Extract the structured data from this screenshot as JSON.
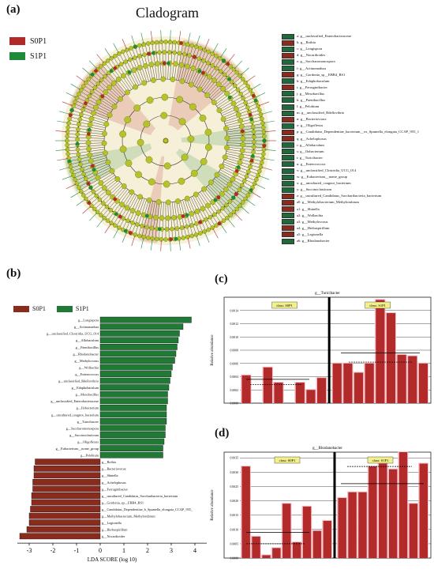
{
  "panel_a": {
    "label": "(a)",
    "title": "Cladogram",
    "legend": [
      {
        "name": "S0P1",
        "color": "#b02a2a"
      },
      {
        "name": "S1P1",
        "color": "#1f8a3a"
      }
    ],
    "taxa": [
      {
        "label": "a: g__unclassified_Enterobacteraceae",
        "group": "S1P1"
      },
      {
        "label": "b: g__Rothia",
        "group": "S0P1"
      },
      {
        "label": "c: g__Longispora",
        "group": "S1P1"
      },
      {
        "label": "d: g__Nocardioides",
        "group": "S0P1"
      },
      {
        "label": "e: g__Saccharomonospora",
        "group": "S1P1"
      },
      {
        "label": "f: g__Actinomadura",
        "group": "S1P1"
      },
      {
        "label": "g: g__Gordonia_sp__EBB4_RS1",
        "group": "S0P1"
      },
      {
        "label": "h: g__Edaphobaculum",
        "group": "S1P1"
      },
      {
        "label": "i: g__Ferruginibacter",
        "group": "S0P1"
      },
      {
        "label": "j: g__Mesobacillus",
        "group": "S1P1"
      },
      {
        "label": "k: g__Paenibacillus",
        "group": "S1P1"
      },
      {
        "label": "l: g__Pelobium",
        "group": "S1P1"
      },
      {
        "label": "m: g__unclassified_Bdellovibrio",
        "group": "S1P1"
      },
      {
        "label": "n: g__Bacteriovorax",
        "group": "S0P1"
      },
      {
        "label": "o: g__Oligoflexus",
        "group": "S1P1"
      },
      {
        "label": "p: g__Candidatus_Dependentiae_bacterium__ex_Spumella_elongata_CCAP_955_1",
        "group": "S0P1"
      },
      {
        "label": "q: g__Achelophosus",
        "group": "S0P1"
      },
      {
        "label": "r: g__Allobaculum",
        "group": "S1P1"
      },
      {
        "label": "s: g__Ilobacterium",
        "group": "S1P1"
      },
      {
        "label": "t: g__Turicibacter",
        "group": "S1P1"
      },
      {
        "label": "u: g__Enterococcus",
        "group": "S1P1"
      },
      {
        "label": "v: g__unclassified_Clostridia_UCG_014",
        "group": "S1P1"
      },
      {
        "label": "w: g__Eubacterium__nome_group",
        "group": "S1P1"
      },
      {
        "label": "x: g__uncultured_coagnot_bacterium",
        "group": "S1P1"
      },
      {
        "label": "y: g__Succinoclasticum",
        "group": "S1P1"
      },
      {
        "label": "z: g__uncultured_Candidatus_Saccharibacteria_bacterium",
        "group": "S0P1"
      },
      {
        "label": "a0: g__Methylobacterium_Methylorubrum",
        "group": "S0P1"
      },
      {
        "label": "a1: g__Shinella",
        "group": "S0P1"
      },
      {
        "label": "a2: g__Wolbachia",
        "group": "S1P1"
      },
      {
        "label": "a3: g__Methylovorus",
        "group": "S1P1"
      },
      {
        "label": "a4: g__Herbaspirillum",
        "group": "S0P1"
      },
      {
        "label": "a5: g__Legionella",
        "group": "S0P1"
      },
      {
        "label": "a6: g__Rhodanobacter",
        "group": "S1P1"
      }
    ]
  },
  "panel_b": {
    "label": "(b)",
    "legend": [
      {
        "name": "S0P1",
        "color": "#8b2b1e"
      },
      {
        "name": "S1P1",
        "color": "#1f7a35"
      }
    ]
  },
  "panel_c": {
    "label": "(c)"
  },
  "panel_d": {
    "label": "(d)"
  },
  "chart_data": [
    {
      "id": "lda",
      "type": "bar",
      "orientation": "horizontal",
      "xlabel": "LDA SCORE (log 10)",
      "xlim": [
        -3.5,
        4.5
      ],
      "xticks": [
        -3,
        -2,
        -1,
        0,
        1,
        2,
        3,
        4
      ],
      "categories": [
        "Longispora",
        "Actinomadura",
        "unclassified_Clostridia_UCG_014",
        "Allobaculum",
        "Paenibacillus",
        "Rhodanobacter",
        "Methylovorus",
        "Wolbachia",
        "Enterococcus",
        "unclassified_Bdellovibrio",
        "Edaphobaculum",
        "Mesobacillus",
        "unclassified_Enterobacteraceae",
        "Ilobacterium",
        "uncultured_coagnot_bacterium",
        "Turicibacter",
        "Saccharomonospora",
        "Succinoclasticum",
        "Oligoflexus",
        "Eubacterium__nome_group",
        "Pelobium",
        "Rothia",
        "Bacteriovorax",
        "Shinella",
        "Achelophosus",
        "Ferruginibacter",
        "uncultured_Candidatus_Saccharibacteria_bacterium",
        "Gordonia_sp__EBB4_RS1",
        "Candidatus_Dependentiae_b_Spumella_elongata_CCAP_955_",
        "Methylobacterium_Methylorubrum",
        "Legionella",
        "Herbaspirillum",
        "Nocardioides"
      ],
      "values": [
        3.85,
        3.5,
        3.35,
        3.3,
        3.25,
        3.2,
        3.15,
        3.05,
        3.0,
        2.95,
        2.9,
        2.85,
        2.85,
        2.8,
        2.8,
        2.8,
        2.75,
        2.75,
        2.7,
        2.65,
        2.65,
        -2.75,
        -2.8,
        -2.8,
        -2.85,
        -2.85,
        -2.9,
        -2.9,
        -2.95,
        -3.0,
        -3.0,
        -3.1,
        -3.4
      ],
      "groups": [
        "S1P1",
        "S1P1",
        "S1P1",
        "S1P1",
        "S1P1",
        "S1P1",
        "S1P1",
        "S1P1",
        "S1P1",
        "S1P1",
        "S1P1",
        "S1P1",
        "S1P1",
        "S1P1",
        "S1P1",
        "S1P1",
        "S1P1",
        "S1P1",
        "S1P1",
        "S1P1",
        "S1P1",
        "S0P1",
        "S0P1",
        "S0P1",
        "S0P1",
        "S0P1",
        "S0P1",
        "S0P1",
        "S0P1",
        "S0P1",
        "S0P1",
        "S0P1",
        "S0P1"
      ]
    },
    {
      "id": "turicibacter",
      "type": "bar",
      "title": "g__Turicibacter",
      "ylabel": "Relative abundance",
      "ylim": [
        0,
        0.0016
      ],
      "yticks": [
        0.0,
        0.0002,
        0.0004,
        0.0006,
        0.0008,
        0.001,
        0.0012,
        0.0014
      ],
      "class_labels": [
        "class: S0P1",
        "class: S1P1"
      ],
      "values": [
        0.00042,
        0.0,
        0.00054,
        0.00031,
        0.0,
        0.00031,
        0.0002,
        0.00038,
        0.0006,
        0.0006,
        0.00046,
        0.0006,
        0.00156,
        0.00136,
        0.00073,
        0.00071,
        0.0006
      ]
    },
    {
      "id": "rhodanobacter",
      "type": "bar",
      "title": "g__Rhodanobacter",
      "ylabel": "Relative abundance",
      "ylim": [
        0,
        0.0037
      ],
      "yticks": [
        0.0,
        0.0005,
        0.001,
        0.0015,
        0.002,
        0.0025,
        0.003,
        0.0035
      ],
      "class_labels": [
        "class: S0P1",
        "class: S1P1"
      ],
      "values": [
        0.0032,
        0.00075,
        0.0001,
        0.00035,
        0.0019,
        0.00055,
        0.0018,
        0.00095,
        0.0013,
        0.0021,
        0.0023,
        0.0023,
        0.0032,
        0.0033,
        0.0031,
        0.0037,
        0.0019,
        0.0033
      ]
    }
  ]
}
